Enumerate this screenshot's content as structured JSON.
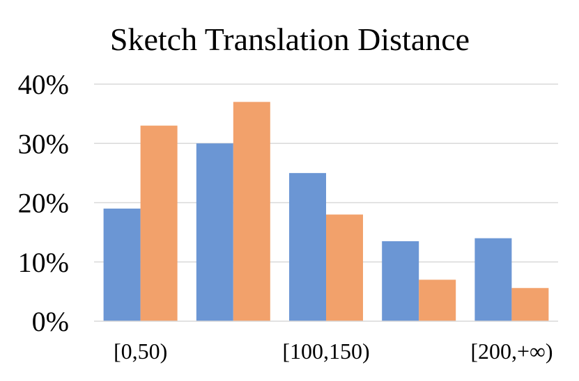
{
  "chart_data": {
    "type": "bar",
    "title": "Sketch Translation Distance",
    "xlabel": "",
    "ylabel": "",
    "categories": [
      "[0,50)",
      "",
      "[100,150)",
      "",
      "[200,+∞)"
    ],
    "series": [
      {
        "values": [
          19,
          30,
          25,
          13.5,
          14
        ],
        "color": "#6b96d4"
      },
      {
        "values": [
          33,
          37,
          18,
          7,
          5.6
        ],
        "color": "#f2a16b"
      }
    ],
    "ylim": [
      0,
      40
    ],
    "yticks": [
      0,
      10,
      20,
      30,
      40
    ],
    "ytick_labels": [
      "0%",
      "10%",
      "20%",
      "30%",
      "40%"
    ],
    "grid": true,
    "grid_color": "#d9d9d9",
    "axis_color": "#d9d9d9",
    "legend": "none"
  }
}
